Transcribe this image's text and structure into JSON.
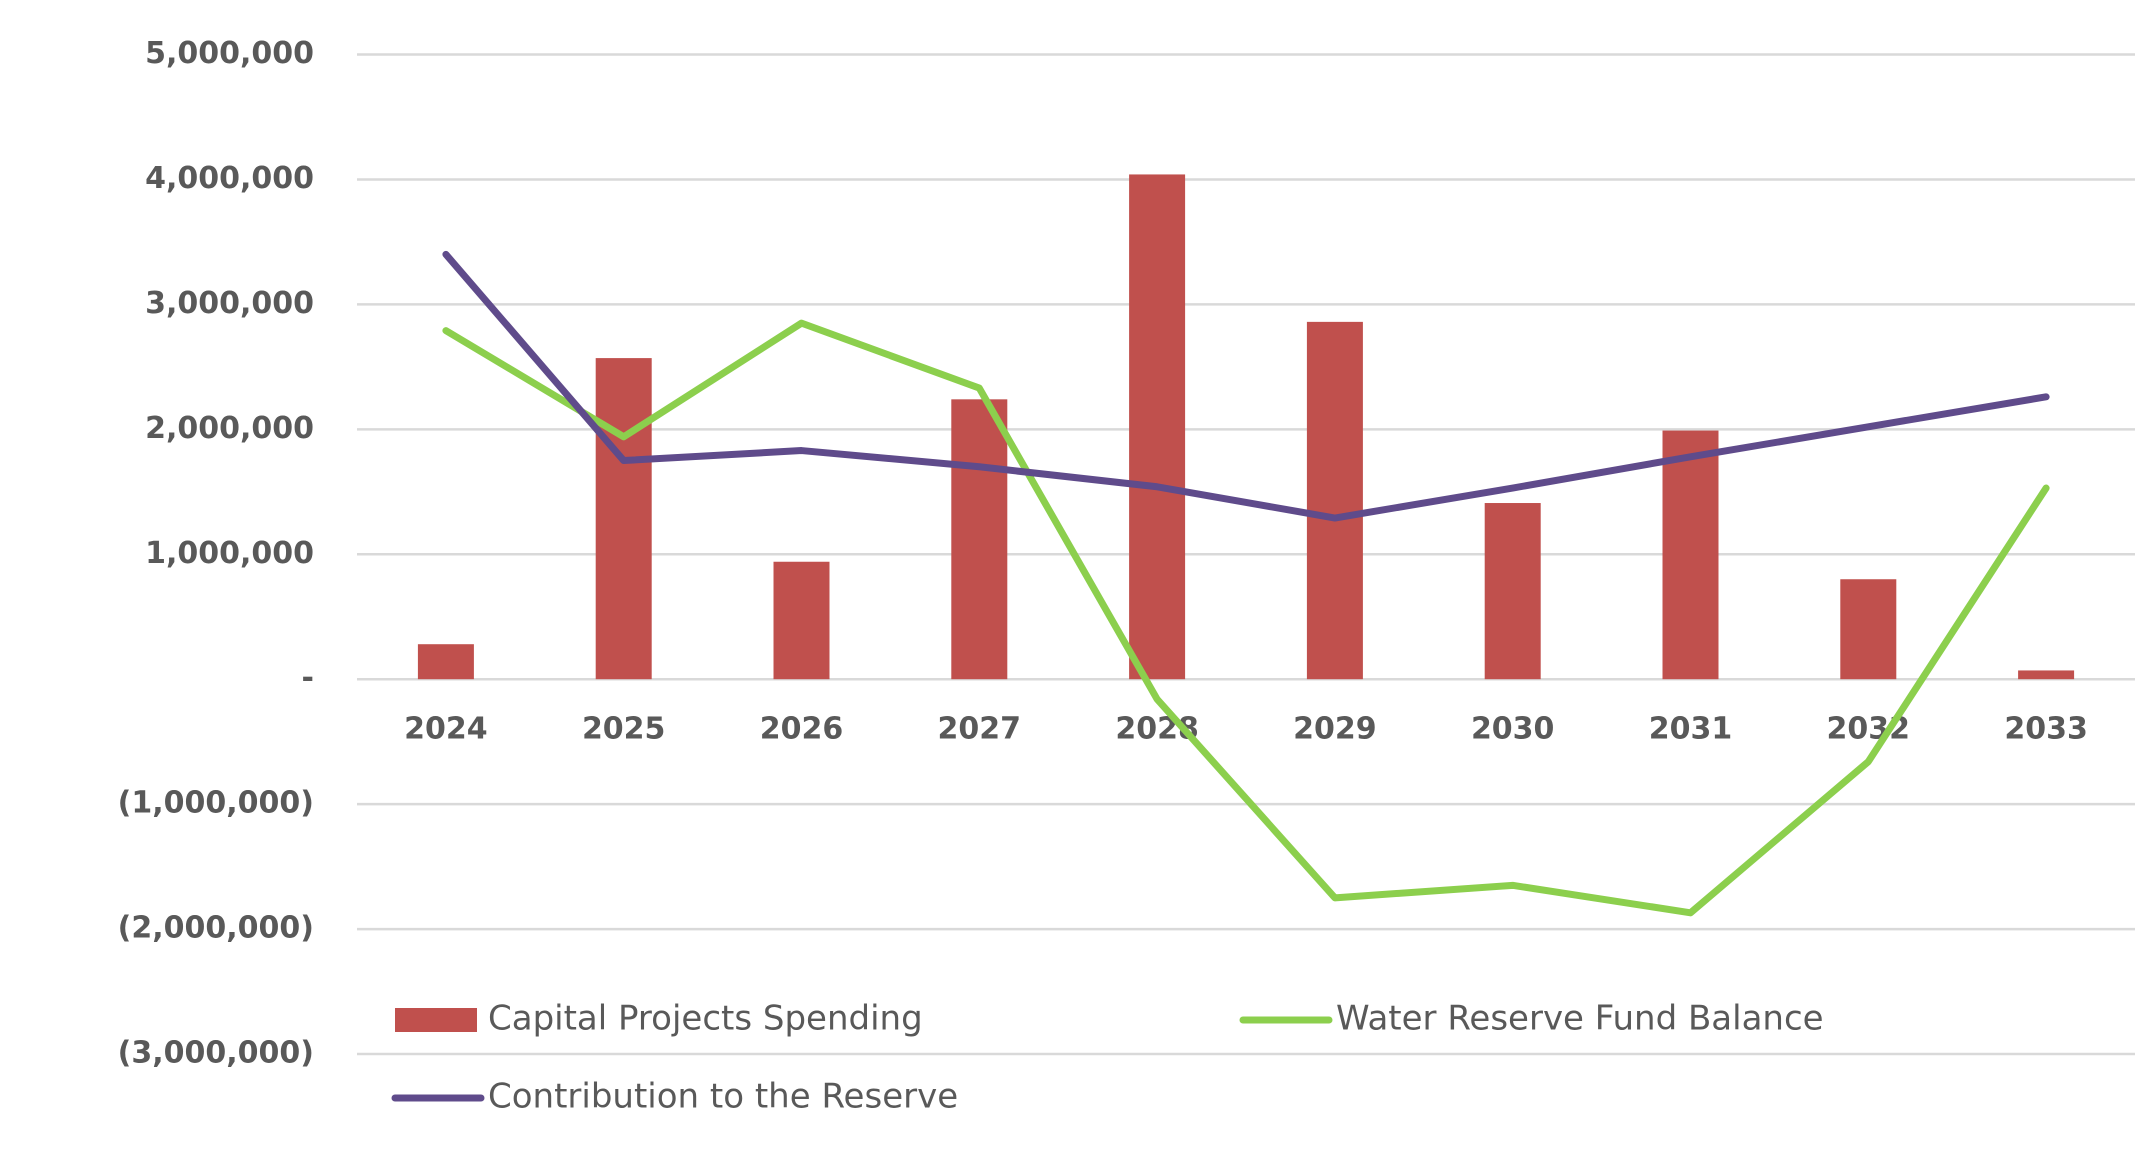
{
  "chart_data": {
    "type": "bar-line",
    "categories": [
      "2024",
      "2025",
      "2026",
      "2027",
      "2028",
      "2029",
      "2030",
      "2031",
      "2032",
      "2033"
    ],
    "series": [
      {
        "name": "Capital Projects Spending",
        "type": "bar",
        "color": "#c0504d",
        "values": [
          280000,
          2570000,
          940000,
          2240000,
          4040000,
          2860000,
          1410000,
          1990000,
          800000,
          70000
        ]
      },
      {
        "name": "Water Reserve Fund Balance",
        "type": "line",
        "color": "#8ccf4d",
        "values": [
          2790000,
          1940000,
          2850000,
          2330000,
          -160000,
          -1750000,
          -1650000,
          -1870000,
          -660000,
          1530000
        ]
      },
      {
        "name": "Contribution to the Reserve",
        "type": "line",
        "color": "#5f4b8b",
        "values": [
          3400000,
          1750000,
          1830000,
          1700000,
          1540000,
          1290000,
          1530000,
          1780000,
          2020000,
          2260000
        ]
      }
    ],
    "ylim": [
      -3000000,
      5000000
    ],
    "yticks": [
      {
        "value": -3000000,
        "label": "(3,000,000)"
      },
      {
        "value": -2000000,
        "label": "(2,000,000)"
      },
      {
        "value": -1000000,
        "label": "(1,000,000)"
      },
      {
        "value": 0,
        "label": "-"
      },
      {
        "value": 1000000,
        "label": "1,000,000"
      },
      {
        "value": 2000000,
        "label": "2,000,000"
      },
      {
        "value": 3000000,
        "label": "3,000,000"
      },
      {
        "value": 4000000,
        "label": "4,000,000"
      },
      {
        "value": 5000000,
        "label": "5,000,000"
      }
    ],
    "grid": true,
    "legend": "bottom"
  }
}
